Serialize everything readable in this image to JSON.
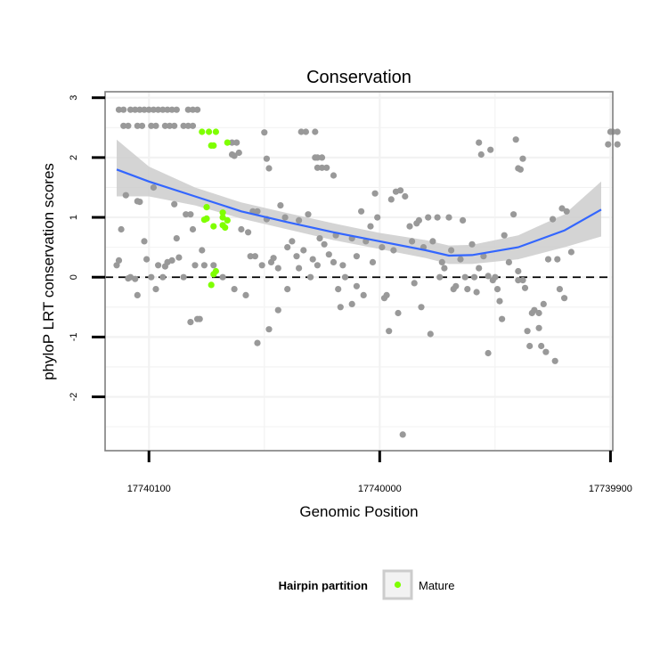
{
  "chart_data": {
    "type": "scatter",
    "title": "Conservation",
    "xlabel": "Genomic Position",
    "ylabel": "phyloP LRT conservation scores",
    "x_reversed": true,
    "xlim": [
      17740119,
      17739899
    ],
    "ylim": [
      -2.9,
      3.1
    ],
    "x_ticks": [
      {
        "value": 17740100,
        "label": "17740100"
      },
      {
        "value": 17740000,
        "label": "17740000"
      },
      {
        "value": 17739900,
        "label": "17739900"
      }
    ],
    "y_ticks": [
      {
        "value": 3,
        "label": "3"
      },
      {
        "value": 2,
        "label": "2"
      },
      {
        "value": 1,
        "label": "1"
      },
      {
        "value": 0,
        "label": "0"
      },
      {
        "value": -1,
        "label": "-1"
      },
      {
        "value": -2,
        "label": "-2"
      }
    ],
    "reference_line": {
      "y": 0,
      "style": "dashed"
    },
    "grid": true,
    "legend": {
      "title": "Hairpin partition",
      "position": "bottom",
      "entries": [
        {
          "label": "Mature",
          "color": "#7fff00"
        }
      ]
    },
    "colors": {
      "points": "#999999",
      "mature": "#7fff00",
      "smooth_line": "#3366ff",
      "ribbon": "#cccccc",
      "panel_border": "#7f7f7f",
      "grid": "#f2f2f2"
    },
    "smooth": {
      "x": [
        17740114,
        17740100,
        17740080,
        17740060,
        17740040,
        17740020,
        17740000,
        17739980,
        17739970,
        17739960,
        17739940,
        17739920,
        17739904
      ],
      "y": [
        1.8,
        1.6,
        1.35,
        1.1,
        0.92,
        0.75,
        0.6,
        0.45,
        0.36,
        0.37,
        0.5,
        0.78,
        1.13
      ],
      "upper": [
        2.3,
        1.85,
        1.5,
        1.25,
        1.07,
        0.9,
        0.74,
        0.62,
        0.53,
        0.54,
        0.7,
        1.05,
        1.6
      ],
      "lower": [
        1.35,
        1.35,
        1.2,
        0.98,
        0.8,
        0.62,
        0.47,
        0.32,
        0.22,
        0.22,
        0.3,
        0.5,
        0.68
      ]
    },
    "series": [
      {
        "name": "Mature",
        "points": [
          [
            17740077,
            2.43
          ],
          [
            17740074,
            2.43
          ],
          [
            17740071,
            2.43
          ],
          [
            17740066,
            2.25
          ],
          [
            17740073,
            2.2
          ],
          [
            17740072,
            2.2
          ],
          [
            17740075,
            1.17
          ],
          [
            17740075,
            0.98
          ],
          [
            17740076,
            0.96
          ],
          [
            17740068,
            1.08
          ],
          [
            17740068,
            1.0
          ],
          [
            17740066,
            0.95
          ],
          [
            17740072,
            0.85
          ],
          [
            17740068,
            0.87
          ],
          [
            17740067,
            0.83
          ],
          [
            17740071,
            0.1
          ],
          [
            17740072,
            0.05
          ],
          [
            17740073,
            -0.13
          ]
        ]
      },
      {
        "name": "",
        "points": [
          [
            17740113,
            2.8
          ],
          [
            17740111,
            2.8
          ],
          [
            17740108,
            2.8
          ],
          [
            17740106,
            2.8
          ],
          [
            17740104,
            2.8
          ],
          [
            17740102,
            2.8
          ],
          [
            17740100,
            2.8
          ],
          [
            17740098,
            2.8
          ],
          [
            17740096,
            2.8
          ],
          [
            17740094,
            2.8
          ],
          [
            17740092,
            2.8
          ],
          [
            17740090,
            2.8
          ],
          [
            17740088,
            2.8
          ],
          [
            17740083,
            2.8
          ],
          [
            17740081,
            2.8
          ],
          [
            17740079,
            2.8
          ],
          [
            17740111,
            2.53
          ],
          [
            17740109,
            2.53
          ],
          [
            17740105,
            2.53
          ],
          [
            17740103,
            2.53
          ],
          [
            17740099,
            2.53
          ],
          [
            17740097,
            2.53
          ],
          [
            17740093,
            2.53
          ],
          [
            17740091,
            2.53
          ],
          [
            17740089,
            2.53
          ],
          [
            17740085,
            2.53
          ],
          [
            17740083,
            2.53
          ],
          [
            17740081,
            2.53
          ],
          [
            17740064,
            2.25
          ],
          [
            17740062,
            2.25
          ],
          [
            17740061,
            2.08
          ],
          [
            17740064,
            2.05
          ],
          [
            17740063,
            2.03
          ],
          [
            17740050,
            2.42
          ],
          [
            17740034,
            2.43
          ],
          [
            17740032,
            2.43
          ],
          [
            17740028,
            2.43
          ],
          [
            17740049,
            1.98
          ],
          [
            17740048,
            1.82
          ],
          [
            17740028,
            2.0
          ],
          [
            17740027,
            2.0
          ],
          [
            17740025,
            2.0
          ],
          [
            17740027,
            1.83
          ],
          [
            17740025,
            1.83
          ],
          [
            17740023,
            1.83
          ],
          [
            17740020,
            1.7
          ],
          [
            17739957,
            2.25
          ],
          [
            17739956,
            2.05
          ],
          [
            17739952,
            2.13
          ],
          [
            17739941,
            2.3
          ],
          [
            17739940,
            1.82
          ],
          [
            17739939,
            1.8
          ],
          [
            17739938,
            1.98
          ],
          [
            17739900,
            2.43
          ],
          [
            17739899,
            2.43
          ],
          [
            17739897,
            2.43
          ],
          [
            17739901,
            2.22
          ],
          [
            17739897,
            2.22
          ],
          [
            17740110,
            1.37
          ],
          [
            17740112,
            0.8
          ],
          [
            17740108,
            0.0
          ],
          [
            17740113,
            0.28
          ],
          [
            17740114,
            0.2
          ],
          [
            17740106,
            -0.03
          ],
          [
            17740109,
            -0.02
          ],
          [
            17740105,
            1.27
          ],
          [
            17740104,
            1.26
          ],
          [
            17740102,
            0.6
          ],
          [
            17740101,
            0.3
          ],
          [
            17740099,
            0.0
          ],
          [
            17740098,
            1.5
          ],
          [
            17740096,
            0.2
          ],
          [
            17740094,
            0.0
          ],
          [
            17740093,
            0.18
          ],
          [
            17740092,
            0.25
          ],
          [
            17740090,
            0.28
          ],
          [
            17740089,
            1.22
          ],
          [
            17740088,
            0.65
          ],
          [
            17740087,
            0.33
          ],
          [
            17740085,
            0.0
          ],
          [
            17740084,
            1.05
          ],
          [
            17740082,
            1.05
          ],
          [
            17740081,
            0.8
          ],
          [
            17740080,
            0.2
          ],
          [
            17740079,
            -0.7
          ],
          [
            17740077,
            0.45
          ],
          [
            17740076,
            0.2
          ],
          [
            17740105,
            -0.3
          ],
          [
            17740097,
            -0.2
          ],
          [
            17740082,
            -0.75
          ],
          [
            17740078,
            -0.7
          ],
          [
            17740060,
            0.8
          ],
          [
            17740057,
            0.75
          ],
          [
            17740056,
            0.35
          ],
          [
            17740055,
            1.1
          ],
          [
            17740054,
            0.35
          ],
          [
            17740053,
            1.1
          ],
          [
            17740051,
            0.2
          ],
          [
            17740049,
            0.97
          ],
          [
            17740047,
            0.25
          ],
          [
            17740046,
            0.32
          ],
          [
            17740044,
            0.15
          ],
          [
            17740044,
            -0.55
          ],
          [
            17740043,
            1.2
          ],
          [
            17740041,
            1.0
          ],
          [
            17740040,
            0.5
          ],
          [
            17740038,
            0.6
          ],
          [
            17740036,
            0.35
          ],
          [
            17740035,
            0.95
          ],
          [
            17740033,
            0.45
          ],
          [
            17740031,
            1.05
          ],
          [
            17740029,
            0.3
          ],
          [
            17740027,
            0.2
          ],
          [
            17740026,
            0.65
          ],
          [
            17740024,
            0.55
          ],
          [
            17740022,
            0.38
          ],
          [
            17740020,
            0.25
          ],
          [
            17740019,
            0.7
          ],
          [
            17740017,
            -0.5
          ],
          [
            17740016,
            0.2
          ],
          [
            17740015,
            0.0
          ],
          [
            17740012,
            0.65
          ],
          [
            17740010,
            0.35
          ],
          [
            17740008,
            1.1
          ],
          [
            17740006,
            0.6
          ],
          [
            17740004,
            0.85
          ],
          [
            17740002,
            1.4
          ],
          [
            17740001,
            1.0
          ],
          [
            17739999,
            0.5
          ],
          [
            17739997,
            -0.3
          ],
          [
            17739995,
            1.3
          ],
          [
            17739994,
            0.45
          ],
          [
            17739993,
            1.43
          ],
          [
            17739991,
            1.45
          ],
          [
            17739989,
            1.35
          ],
          [
            17739987,
            0.85
          ],
          [
            17739986,
            0.6
          ],
          [
            17739984,
            0.9
          ],
          [
            17739983,
            0.95
          ],
          [
            17739981,
            0.5
          ],
          [
            17739979,
            1.0
          ],
          [
            17739977,
            0.6
          ],
          [
            17739975,
            1.0
          ],
          [
            17739973,
            0.25
          ],
          [
            17739972,
            0.15
          ],
          [
            17739970,
            1.0
          ],
          [
            17739969,
            0.45
          ],
          [
            17739967,
            -0.15
          ],
          [
            17739965,
            0.3
          ],
          [
            17739964,
            0.95
          ],
          [
            17739962,
            -0.2
          ],
          [
            17739960,
            0.55
          ],
          [
            17739959,
            0.0
          ],
          [
            17739957,
            0.15
          ],
          [
            17739955,
            0.35
          ],
          [
            17739953,
            0.02
          ],
          [
            17739951,
            -0.05
          ],
          [
            17739949,
            -0.2
          ],
          [
            17739948,
            -0.4
          ],
          [
            17739946,
            0.7
          ],
          [
            17739944,
            0.25
          ],
          [
            17739942,
            1.05
          ],
          [
            17739940,
            0.1
          ],
          [
            17739938,
            -0.05
          ],
          [
            17739937,
            -0.18
          ],
          [
            17739935,
            -1.15
          ],
          [
            17739933,
            -0.55
          ],
          [
            17739931,
            -0.6
          ],
          [
            17739929,
            -0.45
          ],
          [
            17739927,
            0.3
          ],
          [
            17739925,
            0.97
          ],
          [
            17739923,
            0.3
          ],
          [
            17739921,
            1.15
          ],
          [
            17739919,
            1.1
          ],
          [
            17739917,
            0.42
          ],
          [
            17740072,
            0.2
          ],
          [
            17740068,
            0.0
          ],
          [
            17740063,
            -0.2
          ],
          [
            17740058,
            -0.3
          ],
          [
            17740053,
            -1.1
          ],
          [
            17740048,
            -0.87
          ],
          [
            17740040,
            -0.2
          ],
          [
            17740035,
            0.15
          ],
          [
            17740030,
            0.0
          ],
          [
            17740018,
            -0.2
          ],
          [
            17740012,
            -0.45
          ],
          [
            17740010,
            -0.15
          ],
          [
            17740007,
            -0.3
          ],
          [
            17740003,
            0.25
          ],
          [
            17739998,
            -0.35
          ],
          [
            17739996,
            -0.9
          ],
          [
            17739992,
            -0.6
          ],
          [
            17739990,
            -2.63
          ],
          [
            17739985,
            -0.1
          ],
          [
            17739982,
            -0.5
          ],
          [
            17739978,
            -0.95
          ],
          [
            17739974,
            0.0
          ],
          [
            17739968,
            -0.2
          ],
          [
            17739963,
            0.0
          ],
          [
            17739958,
            -0.25
          ],
          [
            17739953,
            -1.27
          ],
          [
            17739950,
            0.0
          ],
          [
            17739947,
            -0.7
          ],
          [
            17739940,
            -0.05
          ],
          [
            17739936,
            -0.9
          ],
          [
            17739931,
            -0.85
          ],
          [
            17739928,
            -1.25
          ],
          [
            17739924,
            -1.4
          ],
          [
            17739930,
            -1.15
          ],
          [
            17739920,
            -0.35
          ],
          [
            17739922,
            -0.2
          ],
          [
            17739934,
            -0.6
          ]
        ]
      }
    ]
  }
}
